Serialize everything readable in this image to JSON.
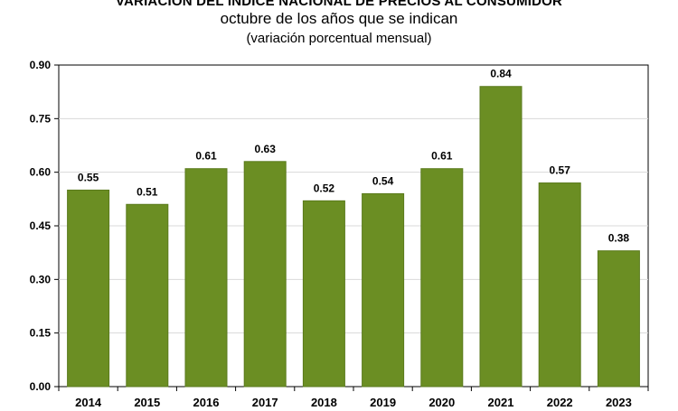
{
  "chart_data": {
    "type": "bar",
    "title": "VARIACIÓN DEL ÍNDICE NACIONAL DE PRECIOS AL CONSUMIDOR",
    "subtitle": "octubre de los años que se indican",
    "note": "(variación porcentual mensual)",
    "categories": [
      "2014",
      "2015",
      "2016",
      "2017",
      "2018",
      "2019",
      "2020",
      "2021",
      "2022",
      "2023"
    ],
    "values": [
      0.55,
      0.51,
      0.61,
      0.63,
      0.52,
      0.54,
      0.61,
      0.84,
      0.57,
      0.38
    ],
    "data_labels": [
      "0.55",
      "0.51",
      "0.61",
      "0.63",
      "0.52",
      "0.54",
      "0.61",
      "0.84",
      "0.57",
      "0.38"
    ],
    "yticks": [
      "0.00",
      "0.15",
      "0.30",
      "0.45",
      "0.60",
      "0.75",
      "0.90"
    ],
    "ylim": [
      0,
      0.9
    ],
    "xlabel": "",
    "ylabel": "",
    "grid": true,
    "bar_color": "#6b8e23",
    "bar_edge_color": "#5a7a1c",
    "grid_color": "#d9d9d9",
    "axis_color": "#000000"
  }
}
